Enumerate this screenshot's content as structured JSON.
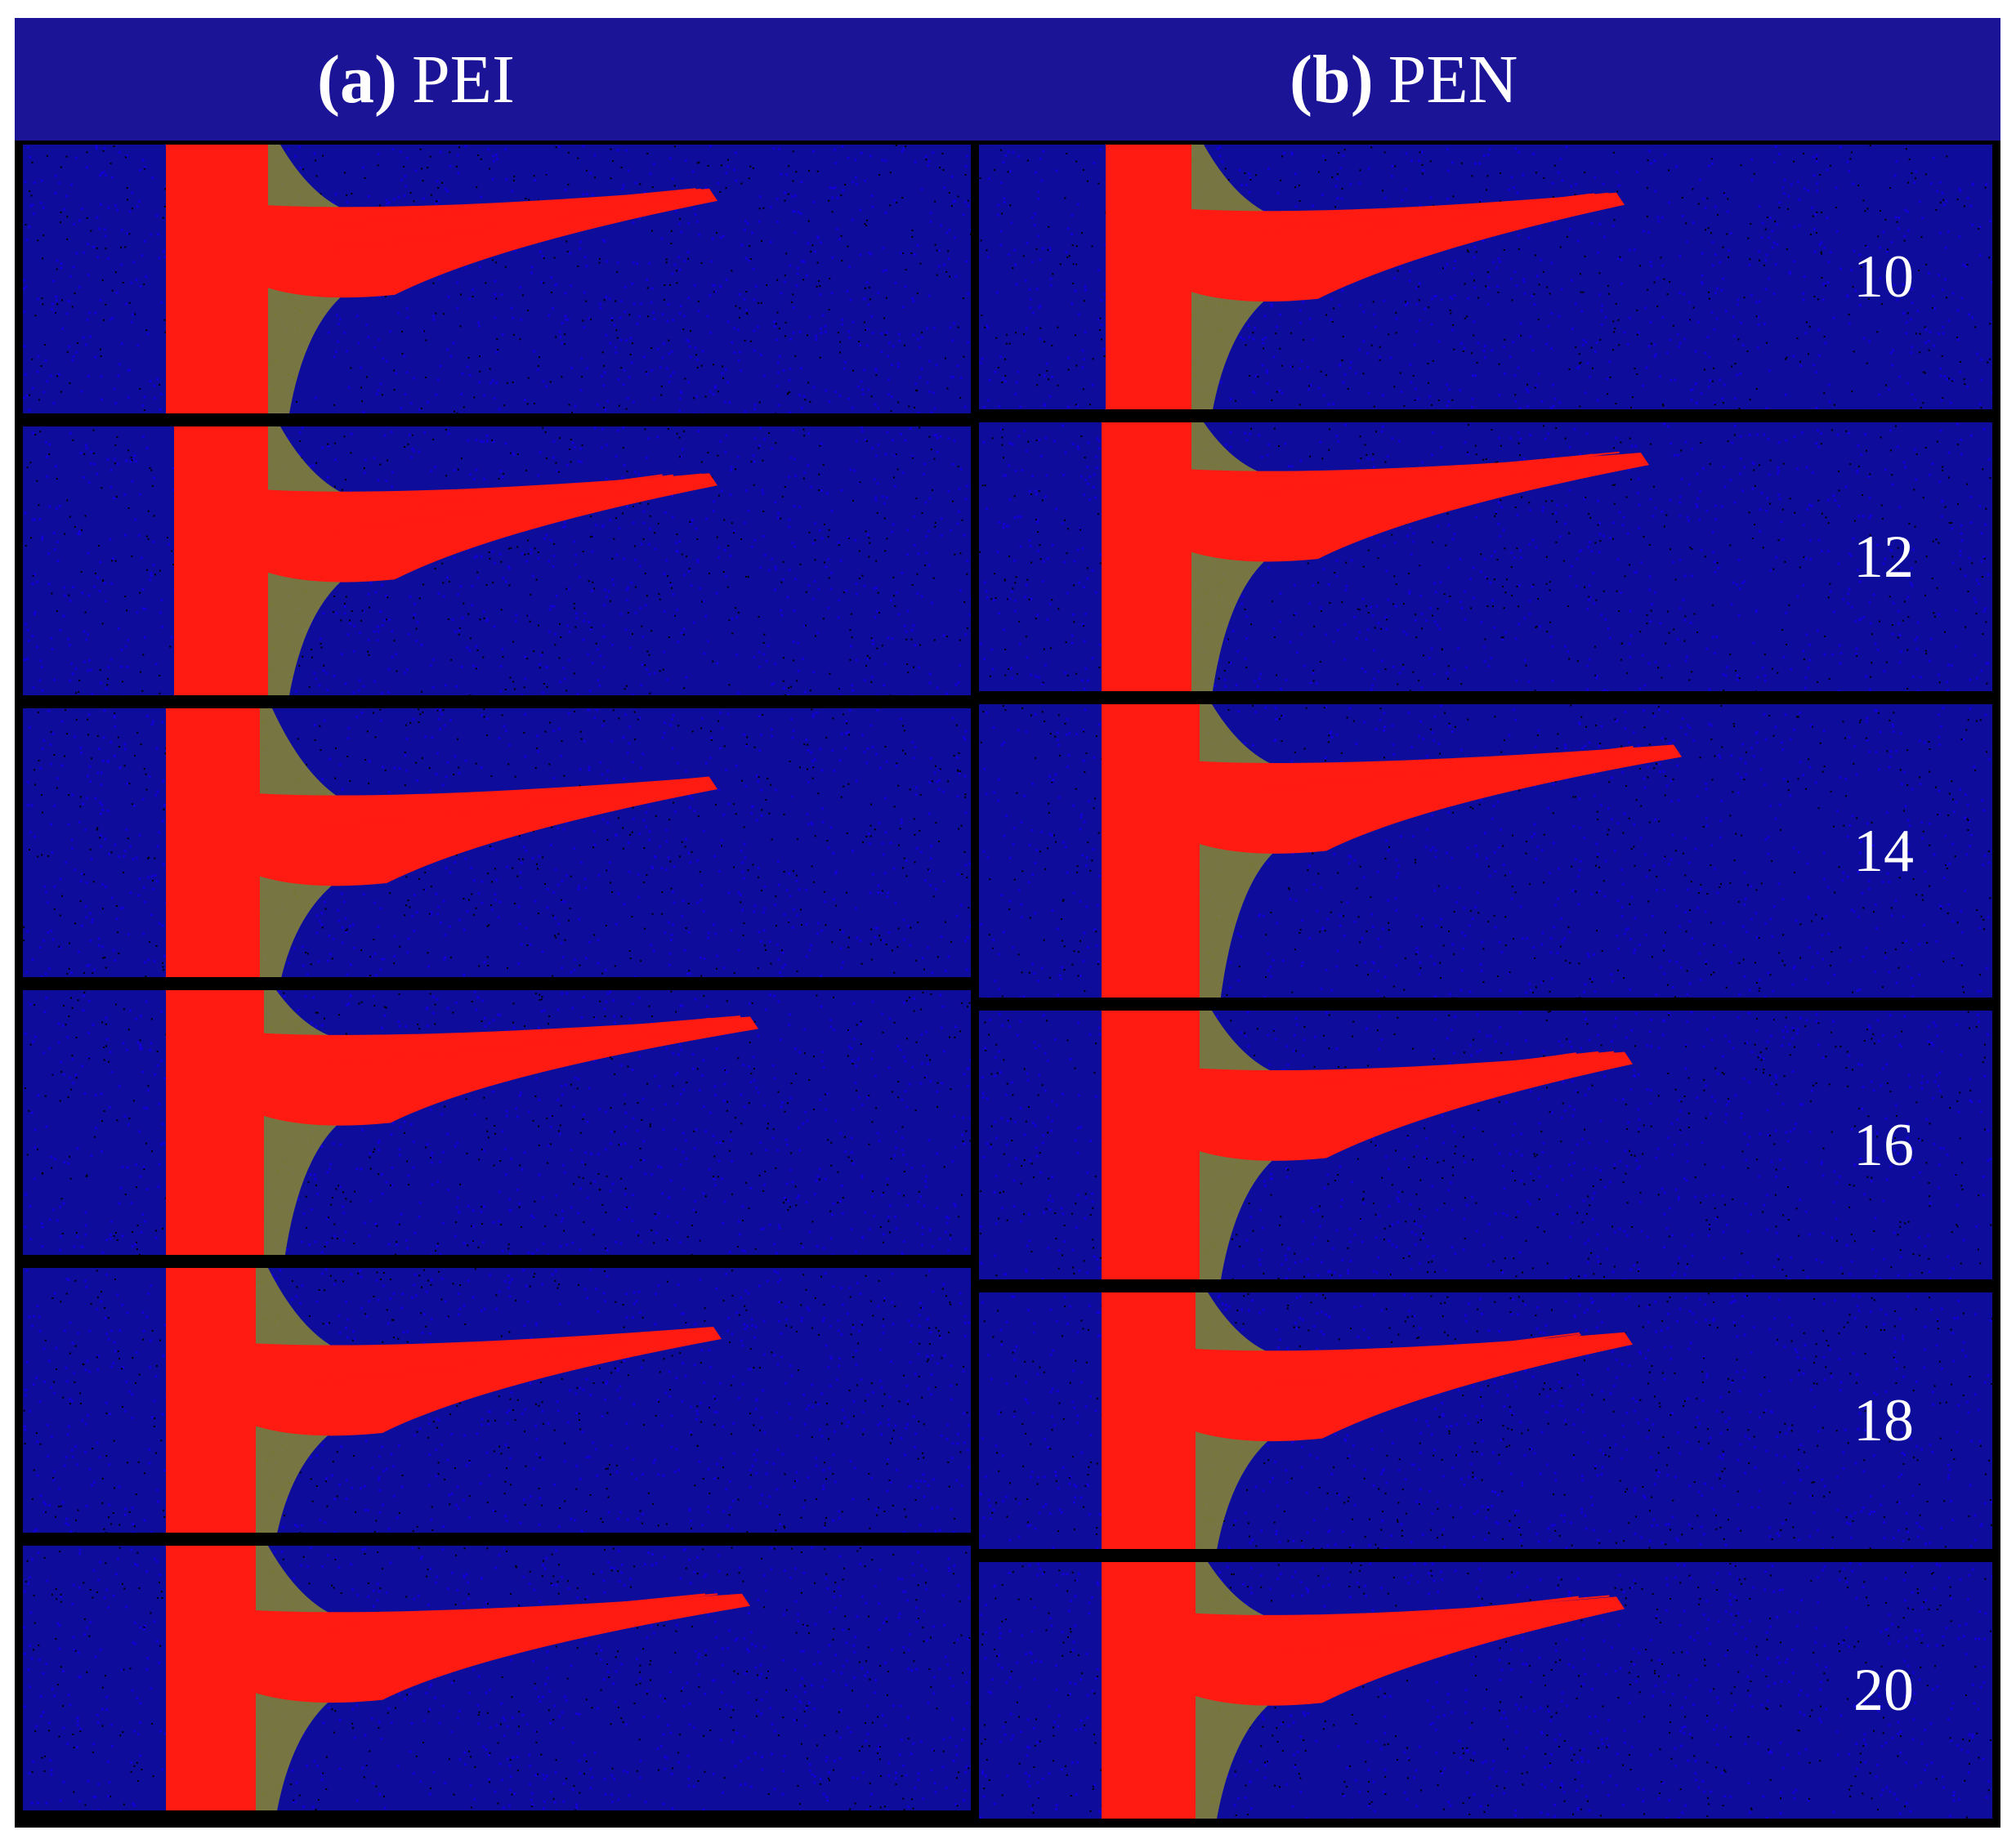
{
  "columns": [
    {
      "letter": "(a)",
      "name": "PEI"
    },
    {
      "letter": "(b)",
      "name": "PEN"
    }
  ],
  "row_labels": [
    "10",
    "12",
    "14",
    "16",
    "18",
    "20"
  ],
  "colors": {
    "header": "#1b1496",
    "background_atoms": "#1400d8",
    "penetrating_atoms": "#ff1a12",
    "interface_atoms": "#8a8a32",
    "separator": "#000000"
  }
}
